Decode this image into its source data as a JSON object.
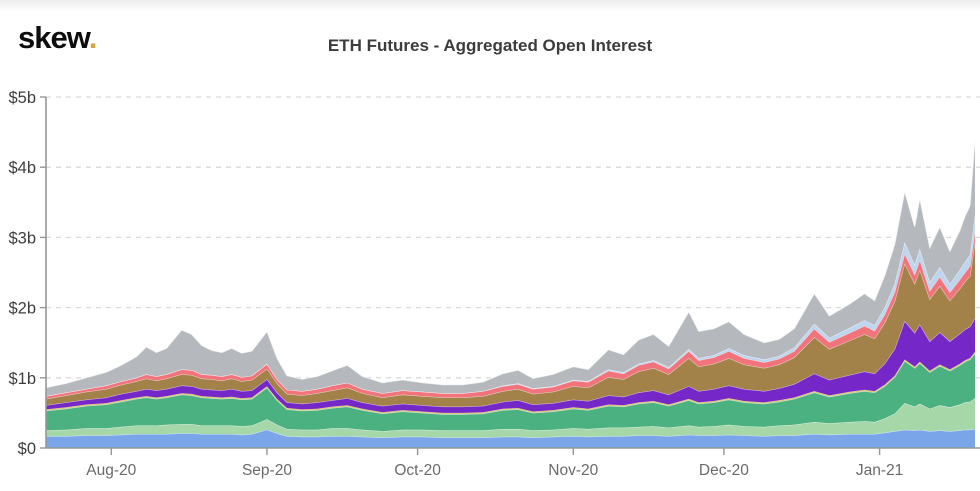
{
  "header": {
    "logo_text": "skew",
    "logo_dot": ".",
    "logo_dot_color": "#d9a43a",
    "title": "ETH Futures - Aggregated Open Interest"
  },
  "chart_data": {
    "type": "area",
    "stacked": true,
    "title": "ETH Futures - Aggregated Open Interest",
    "xlabel": "",
    "ylabel": "",
    "ylim": [
      0,
      5
    ],
    "grid": "dashed-horizontal",
    "legend_visible": false,
    "y_ticks": [
      {
        "value": 5,
        "label": "$5b"
      },
      {
        "value": 4,
        "label": "$4b"
      },
      {
        "value": 3,
        "label": "$3b"
      },
      {
        "value": 2,
        "label": "$2b"
      },
      {
        "value": 1,
        "label": "$1b"
      },
      {
        "value": 0,
        "label": "$0"
      }
    ],
    "x_ticks": [
      {
        "day": 13,
        "label": "Aug-20"
      },
      {
        "day": 44,
        "label": "Sep-20"
      },
      {
        "day": 74,
        "label": "Oct-20"
      },
      {
        "day": 105,
        "label": "Nov-20"
      },
      {
        "day": 135,
        "label": "Dec-20"
      },
      {
        "day": 166,
        "label": "Jan-21"
      }
    ],
    "x_day_range": [
      0,
      185
    ],
    "x_days": [
      0,
      4,
      8,
      12,
      15,
      18,
      20,
      22,
      24,
      27,
      29,
      31,
      33,
      35,
      37,
      39,
      41,
      44,
      46,
      48,
      51,
      54,
      57,
      60,
      63,
      67,
      71,
      75,
      79,
      83,
      87,
      91,
      94,
      97,
      101,
      105,
      108,
      112,
      115,
      118,
      121,
      124,
      128,
      130,
      133,
      136,
      139,
      143,
      146,
      149,
      153,
      156,
      160,
      163,
      165,
      167,
      169,
      171,
      173,
      174,
      176,
      178,
      180,
      182,
      183,
      184,
      185
    ],
    "unit": "billions USD",
    "series": [
      {
        "name": "blue-band",
        "color": "#7aa6e9",
        "values": [
          0.17,
          0.17,
          0.18,
          0.18,
          0.19,
          0.2,
          0.2,
          0.2,
          0.2,
          0.21,
          0.21,
          0.2,
          0.2,
          0.2,
          0.2,
          0.19,
          0.2,
          0.26,
          0.21,
          0.17,
          0.16,
          0.16,
          0.17,
          0.17,
          0.16,
          0.15,
          0.16,
          0.16,
          0.15,
          0.15,
          0.15,
          0.16,
          0.16,
          0.15,
          0.16,
          0.17,
          0.16,
          0.17,
          0.17,
          0.18,
          0.18,
          0.17,
          0.19,
          0.18,
          0.18,
          0.19,
          0.18,
          0.17,
          0.18,
          0.18,
          0.2,
          0.19,
          0.2,
          0.2,
          0.2,
          0.22,
          0.24,
          0.26,
          0.25,
          0.26,
          0.24,
          0.25,
          0.24,
          0.25,
          0.26,
          0.26,
          0.27
        ]
      },
      {
        "name": "light-green-band",
        "color": "#a6d7a8",
        "values": [
          0.08,
          0.09,
          0.1,
          0.1,
          0.11,
          0.12,
          0.12,
          0.12,
          0.13,
          0.13,
          0.13,
          0.12,
          0.12,
          0.12,
          0.12,
          0.12,
          0.12,
          0.15,
          0.12,
          0.1,
          0.1,
          0.1,
          0.11,
          0.11,
          0.1,
          0.09,
          0.1,
          0.1,
          0.1,
          0.1,
          0.1,
          0.11,
          0.11,
          0.1,
          0.1,
          0.11,
          0.11,
          0.12,
          0.12,
          0.12,
          0.13,
          0.12,
          0.13,
          0.12,
          0.13,
          0.14,
          0.13,
          0.13,
          0.14,
          0.15,
          0.17,
          0.16,
          0.17,
          0.18,
          0.17,
          0.2,
          0.25,
          0.38,
          0.34,
          0.37,
          0.32,
          0.36,
          0.34,
          0.37,
          0.39,
          0.4,
          0.44
        ]
      },
      {
        "name": "green-band",
        "color": "#4bb180",
        "values": [
          0.28,
          0.3,
          0.32,
          0.34,
          0.36,
          0.38,
          0.4,
          0.38,
          0.39,
          0.42,
          0.41,
          0.4,
          0.39,
          0.38,
          0.39,
          0.38,
          0.38,
          0.45,
          0.35,
          0.28,
          0.27,
          0.28,
          0.29,
          0.31,
          0.28,
          0.25,
          0.26,
          0.24,
          0.23,
          0.23,
          0.24,
          0.27,
          0.28,
          0.25,
          0.26,
          0.28,
          0.27,
          0.31,
          0.3,
          0.33,
          0.34,
          0.31,
          0.36,
          0.33,
          0.34,
          0.36,
          0.34,
          0.33,
          0.34,
          0.37,
          0.42,
          0.38,
          0.41,
          0.43,
          0.42,
          0.46,
          0.52,
          0.6,
          0.55,
          0.58,
          0.52,
          0.56,
          0.52,
          0.56,
          0.58,
          0.6,
          0.64
        ]
      },
      {
        "name": "khaki-line-band",
        "color": "#d9c97e",
        "values": [
          0.02,
          0.02,
          0.02,
          0.02,
          0.02,
          0.02,
          0.02,
          0.02,
          0.02,
          0.02,
          0.02,
          0.02,
          0.02,
          0.02,
          0.02,
          0.02,
          0.02,
          0.02,
          0.02,
          0.02,
          0.02,
          0.02,
          0.02,
          0.02,
          0.02,
          0.02,
          0.02,
          0.02,
          0.02,
          0.02,
          0.02,
          0.02,
          0.02,
          0.02,
          0.02,
          0.02,
          0.02,
          0.02,
          0.02,
          0.02,
          0.02,
          0.02,
          0.02,
          0.02,
          0.02,
          0.02,
          0.02,
          0.02,
          0.02,
          0.02,
          0.02,
          0.02,
          0.02,
          0.02,
          0.02,
          0.02,
          0.02,
          0.02,
          0.02,
          0.02,
          0.02,
          0.02,
          0.02,
          0.02,
          0.02,
          0.02,
          0.02
        ]
      },
      {
        "name": "purple-band",
        "color": "#7527c8",
        "values": [
          0.06,
          0.07,
          0.07,
          0.08,
          0.09,
          0.09,
          0.1,
          0.1,
          0.1,
          0.11,
          0.11,
          0.1,
          0.1,
          0.1,
          0.11,
          0.1,
          0.1,
          0.1,
          0.09,
          0.08,
          0.08,
          0.09,
          0.09,
          0.1,
          0.09,
          0.09,
          0.09,
          0.09,
          0.09,
          0.09,
          0.09,
          0.1,
          0.11,
          0.1,
          0.1,
          0.11,
          0.11,
          0.13,
          0.12,
          0.14,
          0.15,
          0.14,
          0.18,
          0.16,
          0.17,
          0.18,
          0.17,
          0.16,
          0.17,
          0.19,
          0.25,
          0.22,
          0.24,
          0.26,
          0.25,
          0.3,
          0.38,
          0.55,
          0.48,
          0.53,
          0.42,
          0.46,
          0.4,
          0.43,
          0.44,
          0.45,
          0.48
        ]
      },
      {
        "name": "olive-band",
        "color": "#a3824a",
        "values": [
          0.09,
          0.1,
          0.11,
          0.12,
          0.13,
          0.14,
          0.15,
          0.14,
          0.15,
          0.16,
          0.16,
          0.15,
          0.15,
          0.14,
          0.15,
          0.14,
          0.15,
          0.15,
          0.13,
          0.12,
          0.12,
          0.13,
          0.14,
          0.15,
          0.13,
          0.12,
          0.13,
          0.13,
          0.13,
          0.13,
          0.14,
          0.15,
          0.16,
          0.15,
          0.16,
          0.19,
          0.19,
          0.26,
          0.25,
          0.3,
          0.32,
          0.29,
          0.4,
          0.35,
          0.36,
          0.39,
          0.35,
          0.33,
          0.34,
          0.38,
          0.52,
          0.44,
          0.49,
          0.53,
          0.5,
          0.58,
          0.68,
          0.82,
          0.7,
          0.78,
          0.6,
          0.66,
          0.58,
          0.64,
          0.68,
          0.72,
          1.1
        ]
      },
      {
        "name": "red-band",
        "color": "#f1737b",
        "values": [
          0.04,
          0.04,
          0.04,
          0.05,
          0.05,
          0.05,
          0.06,
          0.06,
          0.06,
          0.07,
          0.07,
          0.06,
          0.06,
          0.06,
          0.06,
          0.06,
          0.06,
          0.07,
          0.06,
          0.06,
          0.06,
          0.06,
          0.07,
          0.07,
          0.06,
          0.06,
          0.06,
          0.06,
          0.06,
          0.06,
          0.07,
          0.07,
          0.07,
          0.07,
          0.07,
          0.08,
          0.08,
          0.09,
          0.08,
          0.09,
          0.09,
          0.08,
          0.1,
          0.09,
          0.09,
          0.1,
          0.09,
          0.08,
          0.08,
          0.09,
          0.12,
          0.1,
          0.11,
          0.12,
          0.11,
          0.12,
          0.13,
          0.14,
          0.13,
          0.14,
          0.12,
          0.13,
          0.12,
          0.13,
          0.13,
          0.14,
          0.15
        ]
      },
      {
        "name": "light-blue-band",
        "color": "#bdd5ee",
        "values": [
          0,
          0,
          0,
          0,
          0,
          0,
          0,
          0,
          0,
          0,
          0,
          0,
          0,
          0,
          0,
          0,
          0,
          0,
          0,
          0,
          0,
          0,
          0,
          0,
          0,
          0,
          0,
          0,
          0,
          0,
          0,
          0.01,
          0.01,
          0.01,
          0.01,
          0.01,
          0.01,
          0.02,
          0.02,
          0.02,
          0.02,
          0.02,
          0.03,
          0.03,
          0.03,
          0.04,
          0.04,
          0.04,
          0.04,
          0.05,
          0.07,
          0.06,
          0.07,
          0.08,
          0.08,
          0.1,
          0.12,
          0.16,
          0.14,
          0.16,
          0.12,
          0.14,
          0.12,
          0.14,
          0.15,
          0.16,
          0.22
        ]
      },
      {
        "name": "gray-band",
        "color": "#b5b9be",
        "values": [
          0.12,
          0.13,
          0.16,
          0.19,
          0.23,
          0.3,
          0.39,
          0.34,
          0.37,
          0.56,
          0.51,
          0.41,
          0.35,
          0.34,
          0.37,
          0.34,
          0.35,
          0.46,
          0.3,
          0.2,
          0.17,
          0.18,
          0.21,
          0.25,
          0.18,
          0.15,
          0.15,
          0.13,
          0.12,
          0.12,
          0.13,
          0.17,
          0.19,
          0.14,
          0.17,
          0.19,
          0.17,
          0.28,
          0.25,
          0.34,
          0.37,
          0.3,
          0.53,
          0.38,
          0.38,
          0.38,
          0.3,
          0.24,
          0.24,
          0.27,
          0.43,
          0.31,
          0.34,
          0.38,
          0.35,
          0.45,
          0.56,
          0.72,
          0.54,
          0.71,
          0.49,
          0.57,
          0.46,
          0.56,
          0.65,
          0.7,
          1.08
        ]
      }
    ]
  }
}
